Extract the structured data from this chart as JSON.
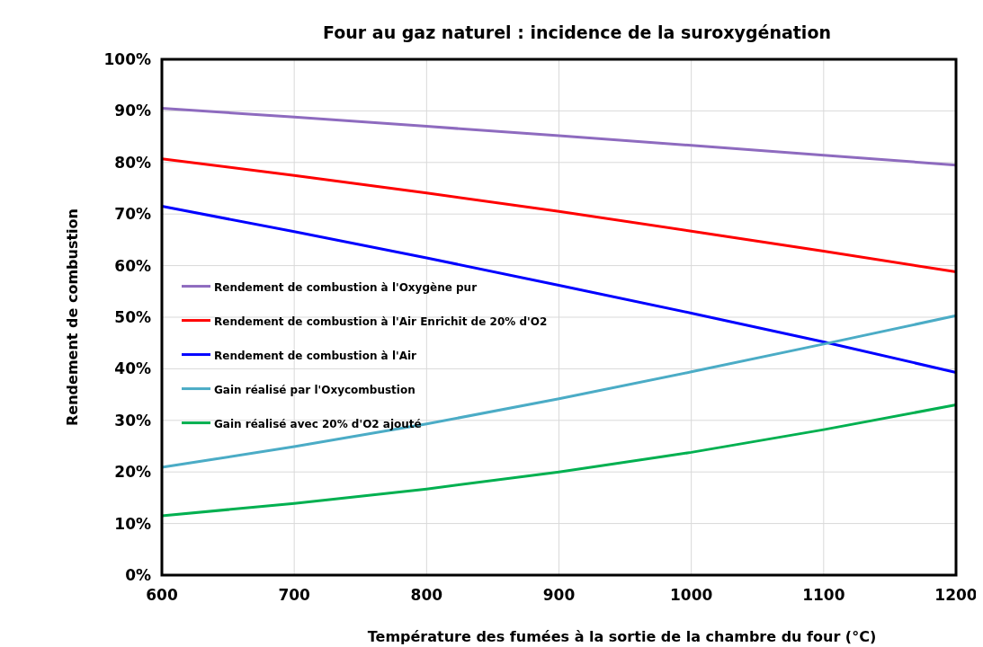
{
  "chart_data": {
    "type": "line",
    "title": "Four au gaz naturel : incidence de la suroxygénation",
    "xlabel": "Température des fumées à la sortie de la chambre du four (°C)",
    "ylabel": "Rendement de combustion",
    "x": [
      600,
      700,
      800,
      900,
      1000,
      1100,
      1200
    ],
    "series": [
      {
        "name": "Rendement de combustion à l'Oxygène pur",
        "color": "#8e6bbf",
        "values": [
          90.5,
          88.8,
          87.0,
          85.2,
          83.3,
          81.4,
          79.5
        ]
      },
      {
        "name": "Rendement de combustion à l'Air Enrichit de 20% d'O2",
        "color": "#ff0000",
        "values": [
          80.7,
          77.5,
          74.1,
          70.5,
          66.7,
          62.8,
          58.8
        ]
      },
      {
        "name": "Rendement de combustion à l'Air",
        "color": "#0000ff",
        "values": [
          71.5,
          66.6,
          61.5,
          56.2,
          50.8,
          45.2,
          39.3
        ]
      },
      {
        "name": "Gain réalisé par l'Oxycombustion",
        "color": "#4bacc6",
        "values": [
          20.9,
          24.9,
          29.3,
          34.2,
          39.4,
          44.8,
          50.3
        ]
      },
      {
        "name": "Gain réalisé avec 20% d'O2 ajouté",
        "color": "#00b050",
        "values": [
          11.5,
          13.9,
          16.7,
          20.0,
          23.8,
          28.2,
          33.0
        ]
      }
    ],
    "xlim": [
      600,
      1200
    ],
    "xticks": [
      600,
      700,
      800,
      900,
      1000,
      1100,
      1200
    ],
    "ylim": [
      0,
      100
    ],
    "yticks": [
      {
        "value": 0,
        "label": "0%"
      },
      {
        "value": 10,
        "label": "10%"
      },
      {
        "value": 20,
        "label": "20%"
      },
      {
        "value": 30,
        "label": "30%"
      },
      {
        "value": 40,
        "label": "40%"
      },
      {
        "value": 50,
        "label": "50%"
      },
      {
        "value": 60,
        "label": "60%"
      },
      {
        "value": 70,
        "label": "70%"
      },
      {
        "value": 80,
        "label": "80%"
      },
      {
        "value": 90,
        "label": "90%"
      },
      {
        "value": 100,
        "label": "100%"
      }
    ],
    "grid": true,
    "legend": "left",
    "marker": "none",
    "line_style": "solid"
  }
}
